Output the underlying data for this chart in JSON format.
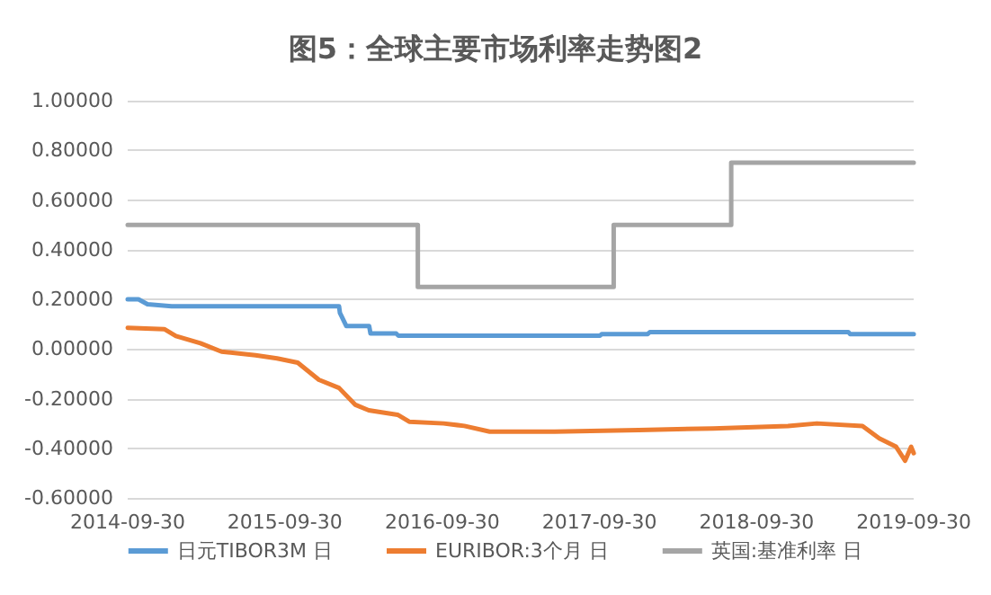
{
  "chart_data": {
    "type": "line",
    "title": "图5：全球主要市场利率走势图2",
    "xlim": [
      "2014-09-30",
      "2019-09-30"
    ],
    "xticks": [
      "2014-09-30",
      "2015-09-30",
      "2016-09-30",
      "2017-09-30",
      "2018-09-30",
      "2019-09-30"
    ],
    "ylim": [
      -0.6,
      1.0
    ],
    "yticks": [
      {
        "value": -0.6,
        "label": "-0.60000"
      },
      {
        "value": -0.4,
        "label": "-0.40000"
      },
      {
        "value": -0.2,
        "label": "-0.20000"
      },
      {
        "value": 0,
        "label": "0.00000"
      },
      {
        "value": 0.2,
        "label": "0.20000"
      },
      {
        "value": 0.4,
        "label": "0.40000"
      },
      {
        "value": 0.6,
        "label": "0.60000"
      },
      {
        "value": 0.8,
        "label": "0.80000"
      },
      {
        "value": 1.0,
        "label": "1.00000"
      }
    ],
    "grid": "y",
    "legend": "bottom",
    "marker": "none",
    "line_style": "solid",
    "series": [
      {
        "name": "日元TIBOR3M 日",
        "color": "#5b9bd5",
        "x": [
          "2014-09-30",
          "2014-10-25",
          "2014-11-15",
          "2015-01-10",
          "2016-02-03",
          "2016-02-05",
          "2016-02-20",
          "2016-04-13",
          "2016-04-16",
          "2016-06-15",
          "2016-06-20",
          "2017-10-01",
          "2017-10-05",
          "2018-01-20",
          "2018-01-25",
          "2019-05-01",
          "2019-05-05",
          "2019-09-30"
        ],
        "values": [
          0.2,
          0.2,
          0.18,
          0.172,
          0.172,
          0.145,
          0.092,
          0.092,
          0.062,
          0.062,
          0.053,
          0.053,
          0.06,
          0.06,
          0.068,
          0.068,
          0.06,
          0.06
        ]
      },
      {
        "name": "EURIBOR:3个月 日",
        "color": "#ed7d31",
        "x": [
          "2014-09-30",
          "2014-12-24",
          "2015-01-20",
          "2015-03-18",
          "2015-05-06",
          "2015-07-24",
          "2015-09-12",
          "2015-10-30",
          "2015-12-18",
          "2016-02-03",
          "2016-03-12",
          "2016-04-12",
          "2016-06-18",
          "2016-07-15",
          "2016-10-03",
          "2016-11-20",
          "2017-01-18",
          "2017-06-18",
          "2017-12-30",
          "2018-06-21",
          "2018-12-12",
          "2019-02-17",
          "2019-06-03",
          "2019-07-12",
          "2019-08-20",
          "2019-09-10",
          "2019-09-24",
          "2019-09-30"
        ],
        "values": [
          0.085,
          0.08,
          0.052,
          0.023,
          -0.011,
          -0.025,
          -0.038,
          -0.055,
          -0.124,
          -0.157,
          -0.225,
          -0.247,
          -0.265,
          -0.293,
          -0.3,
          -0.31,
          -0.333,
          -0.333,
          -0.327,
          -0.32,
          -0.31,
          -0.3,
          -0.31,
          -0.36,
          -0.394,
          -0.45,
          -0.394,
          -0.42
        ]
      },
      {
        "name": "英国:基准利率 日",
        "color": "#a5a5a5",
        "type": "step",
        "x": [
          "2014-09-30",
          "2016-08-04",
          "2017-11-02",
          "2018-08-02",
          "2019-09-30"
        ],
        "values": [
          0.5,
          0.25,
          0.5,
          0.75,
          0.75
        ]
      }
    ]
  }
}
